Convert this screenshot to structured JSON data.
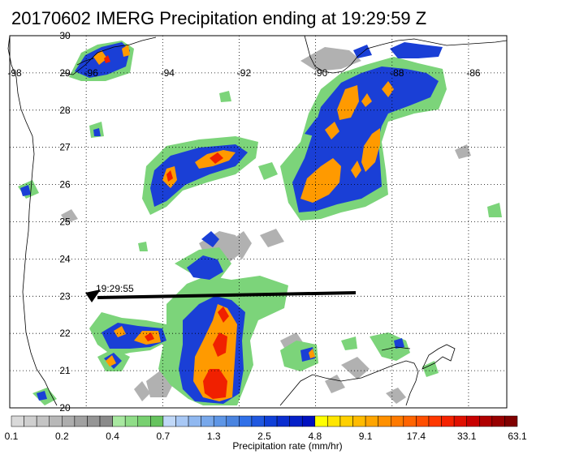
{
  "title": "20170602 IMERG Precipitation ending at 19:29:59 Z",
  "map": {
    "lon_range": [
      -98,
      -85
    ],
    "lat_range": [
      20,
      30
    ],
    "lon_ticks": [
      "-98",
      "-96",
      "-94",
      "-92",
      "-90",
      "-88",
      "-86"
    ],
    "lat_ticks": [
      "20",
      "21",
      "22",
      "23",
      "24",
      "25",
      "26",
      "27",
      "28",
      "29",
      "30"
    ],
    "gridlines": "dotted",
    "coastline_color": "#000000"
  },
  "track": {
    "time_label": "19:29:55",
    "color": "#000000"
  },
  "colorbar": {
    "label": "Precipitation rate (mm/hr)",
    "tick_labels": [
      "0.1",
      "0.2",
      "0.4",
      "0.7",
      "1.3",
      "2.5",
      "4.8",
      "9.1",
      "17.4",
      "33.1",
      "63.1"
    ],
    "colors": [
      "#d9d9d9",
      "#cfcfcf",
      "#c4c4c4",
      "#b8b8b8",
      "#adadad",
      "#a1a1a1",
      "#959595",
      "#8a8a8a",
      "#a8e8a0",
      "#90dd88",
      "#78d070",
      "#66c35e",
      "#c0d8f8",
      "#a8c8f5",
      "#90b8f0",
      "#78a8eb",
      "#5e96e6",
      "#4a84e0",
      "#3070e8",
      "#2058e0",
      "#1040d8",
      "#0a2ed0",
      "#0520c8",
      "#0010c0",
      "#ffff00",
      "#ffe600",
      "#ffd000",
      "#ffbb00",
      "#ffa500",
      "#ff9000",
      "#ff7a00",
      "#ff6400",
      "#ff4e00",
      "#ff3800",
      "#f52200",
      "#e01000",
      "#c80000",
      "#b00000",
      "#980000",
      "#800000"
    ]
  }
}
